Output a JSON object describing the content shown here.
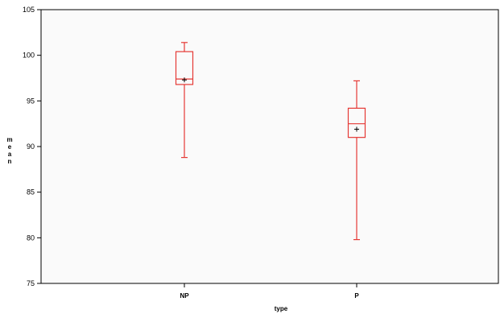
{
  "chart_data": {
    "type": "box",
    "title": "",
    "xlabel": "type",
    "ylabel": "mean",
    "ylim": [
      75,
      105
    ],
    "yticks": [
      75,
      80,
      85,
      90,
      95,
      100,
      105
    ],
    "grid": false,
    "legend": "none",
    "categories": [
      "NP",
      "P"
    ],
    "boxes": [
      {
        "category": "NP",
        "min": 88.8,
        "q1": 96.8,
        "median": 97.4,
        "q3": 100.4,
        "max": 101.4,
        "mean": 97.3
      },
      {
        "category": "P",
        "min": 79.8,
        "q1": 91.0,
        "median": 92.5,
        "q3": 94.2,
        "max": 97.2,
        "mean": 91.9
      }
    ],
    "colors": {
      "box": "#e53935",
      "axis": "#000000",
      "plot_bg": "#fafafa"
    }
  }
}
